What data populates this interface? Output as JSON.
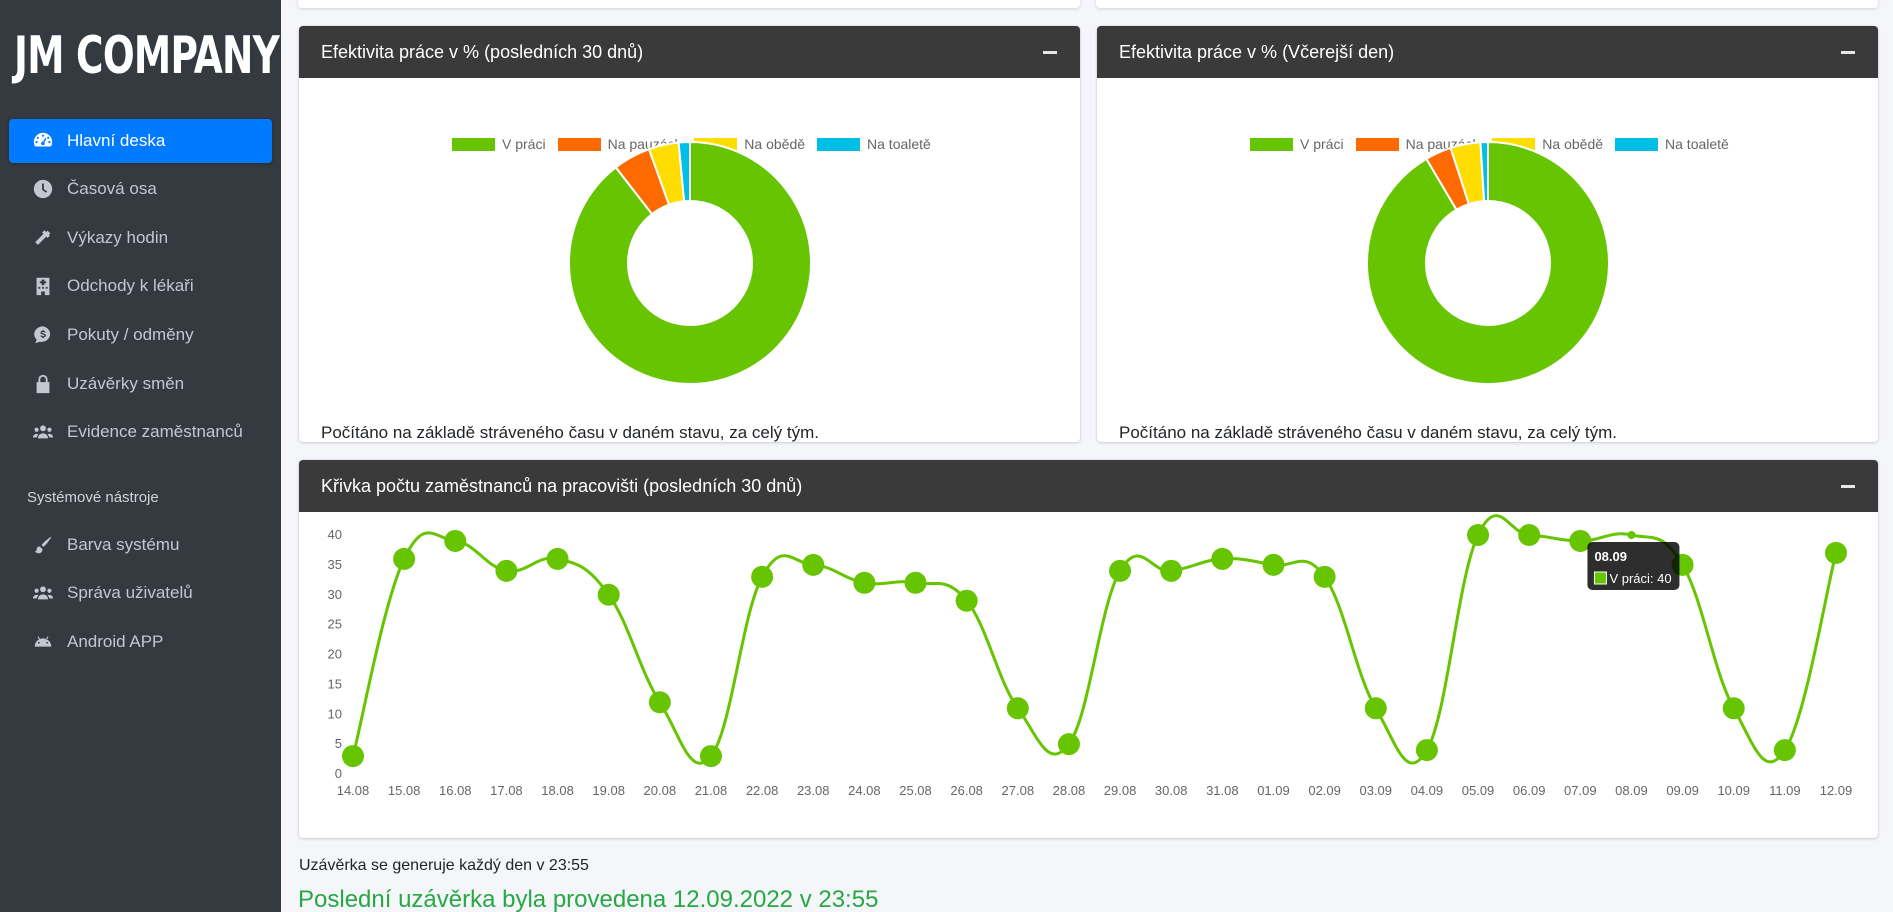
{
  "brand": "JM COMPANY",
  "sidebar": {
    "items": [
      {
        "label": "Hlavní deska",
        "icon": "dashboard-icon",
        "active": true
      },
      {
        "label": "Časová osa",
        "icon": "clock-icon"
      },
      {
        "label": "Výkazy hodin",
        "icon": "hammer-icon"
      },
      {
        "label": "Odchody k lékaři",
        "icon": "hospital-icon"
      },
      {
        "label": "Pokuty / odměny",
        "icon": "dollar-bubble-icon"
      },
      {
        "label": "Uzávěrky směn",
        "icon": "lock-icon"
      },
      {
        "label": "Evidence zaměstnanců",
        "icon": "users-icon"
      }
    ],
    "section_header": "Systémové nástroje",
    "system_items": [
      {
        "label": "Barva systému",
        "icon": "paint-brush-icon"
      },
      {
        "label": "Správa uživatelů",
        "icon": "users-icon"
      },
      {
        "label": "Android APP",
        "icon": "android-icon"
      }
    ]
  },
  "cards": {
    "efficiency_30": {
      "title": "Efektivita práce v % (posledních 30 dnů)",
      "note": "Počítáno na základě stráveného času v daném stavu, za celý tým."
    },
    "efficiency_yesterday": {
      "title": "Efektivita práce v % (Včerejší den)",
      "note": "Počítáno na základě stráveného času v daném stavu, za celý tým."
    },
    "employees_curve": {
      "title": "Křivka počtu zaměstnanců na pracovišti (posledních 30 dnů)"
    }
  },
  "legend": [
    {
      "label": "V práci",
      "color": "#66c400"
    },
    {
      "label": "Na pauzách",
      "color": "#ff6a00"
    },
    {
      "label": "Na obědě",
      "color": "#ffdd00"
    },
    {
      "label": "Na toaletě",
      "color": "#00bfe6"
    }
  ],
  "chart_data": [
    {
      "type": "pie",
      "variant": "doughnut",
      "categories": [
        "V práci",
        "Na pauzách",
        "Na obědě",
        "Na toaletě"
      ],
      "values": [
        89.5,
        5,
        4,
        1.5
      ],
      "colors": [
        "#66c400",
        "#ff6a00",
        "#ffdd00",
        "#00bfe6"
      ],
      "legend": "top"
    },
    {
      "type": "pie",
      "variant": "doughnut",
      "categories": [
        "V práci",
        "Na pauzách",
        "Na obědě",
        "Na toaletě"
      ],
      "values": [
        91.5,
        3.5,
        4,
        1
      ],
      "colors": [
        "#66c400",
        "#ff6a00",
        "#ffdd00",
        "#00bfe6"
      ],
      "legend": "top"
    },
    {
      "type": "line",
      "x": [
        "14.08",
        "15.08",
        "16.08",
        "17.08",
        "18.08",
        "19.08",
        "20.08",
        "21.08",
        "22.08",
        "23.08",
        "24.08",
        "25.08",
        "26.08",
        "27.08",
        "28.08",
        "29.08",
        "30.08",
        "31.08",
        "01.09",
        "02.09",
        "03.09",
        "04.09",
        "05.09",
        "06.09",
        "07.09",
        "08.09",
        "09.09",
        "10.09",
        "11.09",
        "12.09"
      ],
      "series": [
        {
          "name": "V práci",
          "color": "#66c400",
          "values": [
            3,
            36,
            39,
            34,
            36,
            30,
            12,
            3,
            33,
            35,
            32,
            32,
            29,
            11,
            5,
            34,
            34,
            36,
            35,
            33,
            11,
            4,
            40,
            40,
            39,
            40,
            35,
            11,
            4,
            37
          ]
        }
      ],
      "ylim": [
        0,
        40
      ],
      "yticks": [
        0,
        5,
        10,
        15,
        20,
        25,
        30,
        35,
        40
      ],
      "grid": false,
      "tooltip": {
        "title": "08.09",
        "label": "V práci: 40"
      }
    }
  ],
  "footer": {
    "note": "Uzávěrka se generuje každý den v 23:55",
    "last_closure": "Poslední uzávěrka byla provedena 12.09.2022 v 23:55"
  }
}
